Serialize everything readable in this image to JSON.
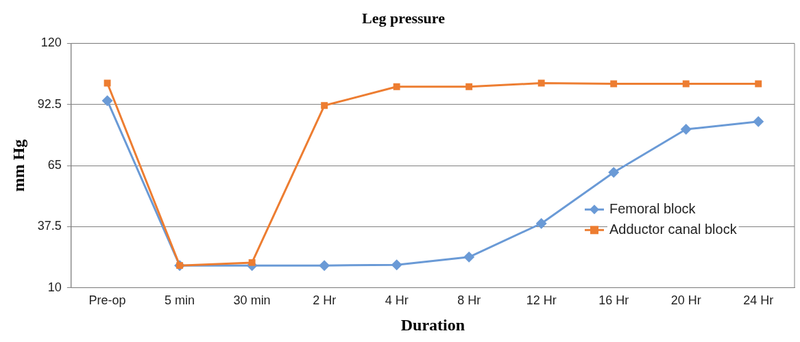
{
  "chart_data": {
    "type": "line",
    "title": "Leg pressure",
    "xlabel": "Duration",
    "ylabel": "mm Hg",
    "categories": [
      "Pre-op",
      "5 min",
      "30 min",
      "2 Hr",
      "4 Hr",
      "8 Hr",
      "12 Hr",
      "16 Hr",
      "20 Hr",
      "24 Hr"
    ],
    "series": [
      {
        "name": "Femoral block",
        "color": "#6a9ad6",
        "marker": "diamond",
        "values": [
          94.2,
          20,
          20,
          20,
          20.3,
          23.8,
          38.9,
          61.9,
          81.3,
          84.8
        ]
      },
      {
        "name": "Adductor canal block",
        "color": "#ed7d31",
        "marker": "square",
        "values": [
          102.1,
          20,
          21.3,
          92,
          100.5,
          100.5,
          102.1,
          101.8,
          101.8,
          101.8
        ]
      }
    ],
    "ylim": [
      10,
      120
    ],
    "yticks": [
      10,
      37.5,
      65,
      92.5,
      120
    ],
    "grid": "y",
    "legend": "right",
    "line_style": "solid"
  }
}
